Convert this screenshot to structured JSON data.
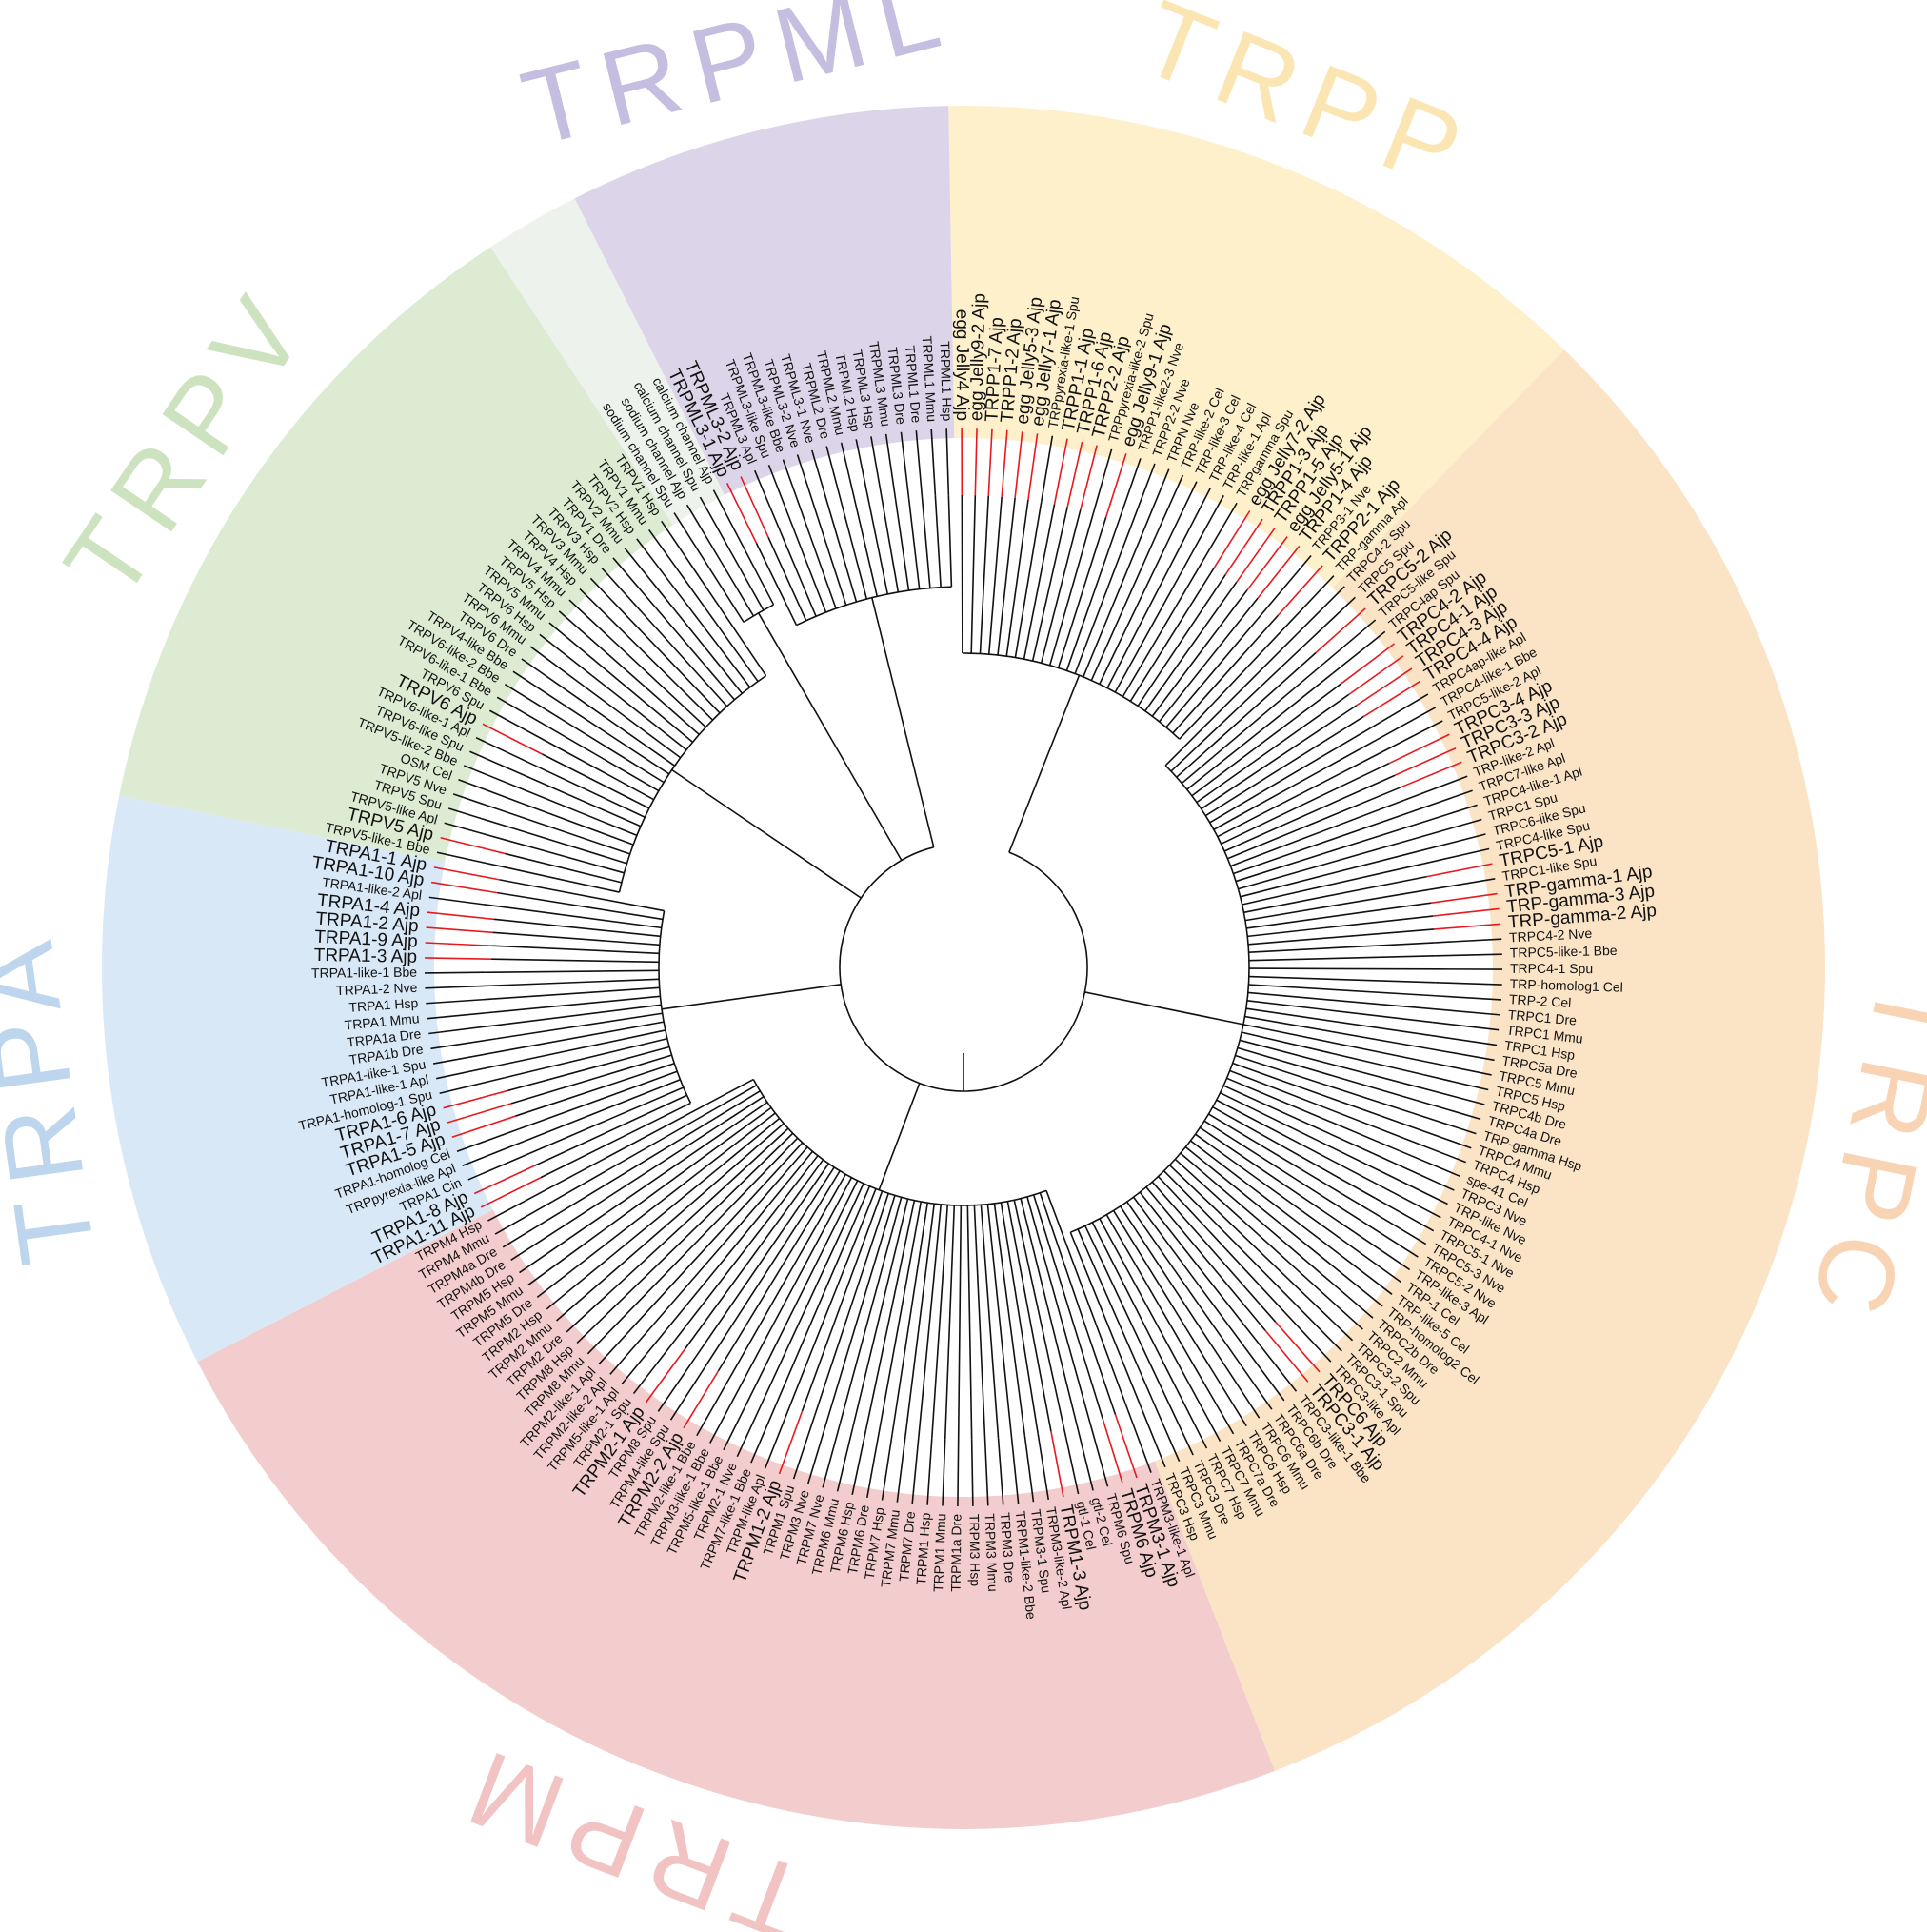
{
  "tree": {
    "highlight_color": "#e8191e",
    "groups": [
      {
        "name": "TRPP",
        "fill": "#fdf0cb",
        "label_color": "#fbe6b3",
        "leaves": [
          {
            "label": "egg Jelly4 Ajp",
            "emphasis": true
          },
          {
            "label": "egg Jelly9-2 Ajp",
            "emphasis": true
          },
          {
            "label": "TRPP1-7 Ajp",
            "emphasis": true
          },
          {
            "label": "TRPP1-2 Ajp",
            "emphasis": true
          },
          {
            "label": "egg Jelly5-3 Ajp",
            "emphasis": true
          },
          {
            "label": "egg Jelly7-1 Ajp",
            "emphasis": true
          },
          {
            "label": "TRPpyrexia-like-1 Spu"
          },
          {
            "label": "TRPP1-1 Ajp",
            "emphasis": true
          },
          {
            "label": "TRPP1-6 Ajp",
            "emphasis": true
          },
          {
            "label": "TRPP2-2 Ajp",
            "emphasis": true
          },
          {
            "label": "TRPpyrexia-like-2 Spu"
          },
          {
            "label": "egg Jelly9-1 Ajp",
            "emphasis": true
          },
          {
            "label": "TRPP1-like2-3 Nve"
          },
          {
            "label": "TRPP2-2 Nve"
          },
          {
            "label": "TRPN Nve"
          },
          {
            "label": "TRP-like-2 Cel"
          },
          {
            "label": "TRP-like-3 Cel"
          },
          {
            "label": "TRP-like-4 Cel"
          },
          {
            "label": "TRP-like-1 Apl"
          },
          {
            "label": "TRPgamma Spu"
          },
          {
            "label": "egg Jelly7-2 Ajp",
            "emphasis": true
          },
          {
            "label": "TRPP1-3 Ajp",
            "emphasis": true
          },
          {
            "label": "TRPP1-5 Ajp",
            "emphasis": true
          },
          {
            "label": "egg Jelly5-1 Ajp",
            "emphasis": true
          },
          {
            "label": "TRPP1-4 Ajp",
            "emphasis": true
          },
          {
            "label": "TRPP3-1 Nve"
          },
          {
            "label": "TRPP2-1 Ajp",
            "emphasis": true
          },
          {
            "label": "TRP-gamma Apl"
          }
        ]
      },
      {
        "name": "TRPC",
        "fill": "#fbe3c6",
        "label_color": "#f8d4b4",
        "leaves": [
          {
            "label": "TRPC4-2 Spu"
          },
          {
            "label": "TRPC5 Spu"
          },
          {
            "label": "TRPC5-2 Ajp",
            "emphasis": true
          },
          {
            "label": "TRPC5-like Spu"
          },
          {
            "label": "TRPC4ap Spu"
          },
          {
            "label": "TRPC4-2 Ajp",
            "emphasis": true
          },
          {
            "label": "TRPC4-1 Ajp",
            "emphasis": true
          },
          {
            "label": "TRPC4-3 Ajp",
            "emphasis": true
          },
          {
            "label": "TRPC4-4 Ajp",
            "emphasis": true
          },
          {
            "label": "TRPC4ap-like Apl"
          },
          {
            "label": "TRPC4-like-1 Bbe"
          },
          {
            "label": "TRPC5-like-2 Apl"
          },
          {
            "label": "TRPC3-4 Ajp",
            "emphasis": true
          },
          {
            "label": "TRPC3-3 Ajp",
            "emphasis": true
          },
          {
            "label": "TRPC3-2 Ajp",
            "emphasis": true
          },
          {
            "label": "TRP-like-2 Apl"
          },
          {
            "label": "TRPC7-like Apl"
          },
          {
            "label": "TRPC4-like-1 Apl"
          },
          {
            "label": "TRPC1 Spu"
          },
          {
            "label": "TRPC6-like Spu"
          },
          {
            "label": "TRPC4-like Spu"
          },
          {
            "label": "TRPC5-1 Ajp",
            "emphasis": true
          },
          {
            "label": "TRPC1-like Spu"
          },
          {
            "label": "TRP-gamma-1 Ajp",
            "emphasis": true
          },
          {
            "label": "TRP-gamma-3 Ajp",
            "emphasis": true
          },
          {
            "label": "TRP-gamma-2 Ajp",
            "emphasis": true
          },
          {
            "label": "TRPC4-2 Nve"
          },
          {
            "label": "TRPC5-like-1 Bbe"
          },
          {
            "label": "TRPC4-1 Spu"
          },
          {
            "label": "TRP-homolog1 Cel"
          },
          {
            "label": "TRP-2 Cel"
          },
          {
            "label": "TRPC1 Dre"
          },
          {
            "label": "TRPC1 Mmu"
          },
          {
            "label": "TRPC1 Hsp"
          },
          {
            "label": "TRPC5a Dre"
          },
          {
            "label": "TRPC5 Mmu"
          },
          {
            "label": "TRPC5 Hsp"
          },
          {
            "label": "TRPC4b Dre"
          },
          {
            "label": "TRPC4a Dre"
          },
          {
            "label": "TRP-gamma Hsp"
          },
          {
            "label": "TRPC4 Mmu"
          },
          {
            "label": "TRPC4 Hsp"
          },
          {
            "label": "spe-41 Cel"
          },
          {
            "label": "TRPC3 Nve"
          },
          {
            "label": "TRP-like Nve"
          },
          {
            "label": "TRPC4-1 Nve"
          },
          {
            "label": "TRPC5-1 Nve"
          },
          {
            "label": "TRPC5-3 Nve"
          },
          {
            "label": "TRPC5-2 Nve"
          },
          {
            "label": "TRP-like-3 Apl"
          },
          {
            "label": "TRP-1 Cel"
          },
          {
            "label": "TRP-like-5 Cel"
          },
          {
            "label": "TRP-homolog2 Cel"
          },
          {
            "label": "TRPC2b Dre"
          },
          {
            "label": "TRPC2 Mmu"
          },
          {
            "label": "TRPC3-2 Spu"
          },
          {
            "label": "TRPC3-1 Spu"
          },
          {
            "label": "TRPC3-like Apl"
          },
          {
            "label": "TRPC6 Ajp",
            "emphasis": true
          },
          {
            "label": "TRPC3-1 Ajp",
            "emphasis": true
          },
          {
            "label": "TRPC3-like-1 Bbe"
          },
          {
            "label": "TRPC6b Dre"
          },
          {
            "label": "TRPC6a Dre"
          },
          {
            "label": "TRPC6 Mmu"
          },
          {
            "label": "TRPC6 Hsp"
          },
          {
            "label": "TRPC7a Dre"
          },
          {
            "label": "TRPC7 Mmu"
          },
          {
            "label": "TRPC7 Hsp"
          },
          {
            "label": "TRPC3 Dre"
          },
          {
            "label": "TRPC3 Mmu"
          },
          {
            "label": "TRPC3 Hsp"
          }
        ]
      },
      {
        "name": "TRPM",
        "fill": "#f3cdcd",
        "label_color": "#f2c3c3",
        "leaves": [
          {
            "label": "TRPM3-like-1 Apl"
          },
          {
            "label": "TRPM3-1 Ajp",
            "emphasis": true
          },
          {
            "label": "TRPM6 Ajp",
            "emphasis": true
          },
          {
            "label": "TRPM6 Spu"
          },
          {
            "label": "gtl-2 Cel"
          },
          {
            "label": "gtl-1 Cel"
          },
          {
            "label": "TRPM1-3 Ajp",
            "emphasis": true
          },
          {
            "label": "TRPM3-like-2 Apl"
          },
          {
            "label": "TRPM3-1 Spu"
          },
          {
            "label": "TRPM1-like-2 Bbe"
          },
          {
            "label": "TRPM3 Dre"
          },
          {
            "label": "TRPM3 Mmu"
          },
          {
            "label": "TRPM3 Hsp"
          },
          {
            "label": "TRPM1a Dre"
          },
          {
            "label": "TRPM1 Mmu"
          },
          {
            "label": "TRPM1 Hsp"
          },
          {
            "label": "TRPM7 Dre"
          },
          {
            "label": "TRPM7 Mmu"
          },
          {
            "label": "TRPM7 Hsp"
          },
          {
            "label": "TRPM6 Dre"
          },
          {
            "label": "TRPM6 Hsp"
          },
          {
            "label": "TRPM6 Mmu"
          },
          {
            "label": "TRPM7 Nve"
          },
          {
            "label": "TRPM3 Nve"
          },
          {
            "label": "TRPM1 Spu"
          },
          {
            "label": "TRPM1-2 Ajp",
            "emphasis": true
          },
          {
            "label": "TRPM-like Apl"
          },
          {
            "label": "TRPM7-like-1 Bbe"
          },
          {
            "label": "TRPM2-1 Nve"
          },
          {
            "label": "TRPM5-like-1 Bbe"
          },
          {
            "label": "TRPM3-like-1 Bbe"
          },
          {
            "label": "TRPM2-like-1 Bbe"
          },
          {
            "label": "TRPM2-2 Ajp",
            "emphasis": true
          },
          {
            "label": "TRPM4-like Spu"
          },
          {
            "label": "TRPM8 Spu"
          },
          {
            "label": "TRPM2-1 Ajp",
            "emphasis": true
          },
          {
            "label": "TRPM2-1 Spu"
          },
          {
            "label": "TRPM5-like-1 Apl"
          },
          {
            "label": "TRPM2-like-2 Apl"
          },
          {
            "label": "TRPM2-like-1 Apl"
          },
          {
            "label": "TRPM8 Mmu"
          },
          {
            "label": "TRPM8 Hsp"
          },
          {
            "label": "TRPM2 Dre"
          },
          {
            "label": "TRPM2 Mmu"
          },
          {
            "label": "TRPM2 Hsp"
          },
          {
            "label": "TRPM5 Dre"
          },
          {
            "label": "TRPM5 Mmu"
          },
          {
            "label": "TRPM5 Hsp"
          },
          {
            "label": "TRPM4b Dre"
          },
          {
            "label": "TRPM4a Dre"
          },
          {
            "label": "TRPM4 Mmu"
          },
          {
            "label": "TRPM4 Hsp"
          }
        ]
      },
      {
        "name": "TRPA",
        "fill": "#d9e8f6",
        "label_color": "#bdd6ee",
        "leaves": [
          {
            "label": "TRPA1-11 Ajp",
            "emphasis": true
          },
          {
            "label": "TRPA1-8 Ajp",
            "emphasis": true
          },
          {
            "label": "TRPA1 Cin"
          },
          {
            "label": "TRPpyrexia-like Apl"
          },
          {
            "label": "TRPA1-homolog Cel"
          },
          {
            "label": "TRPA1-5 Ajp",
            "emphasis": true
          },
          {
            "label": "TRPA1-7 Ajp",
            "emphasis": true
          },
          {
            "label": "TRPA1-6 Ajp",
            "emphasis": true
          },
          {
            "label": "TRPA1-homolog-1 Spu"
          },
          {
            "label": "TRPA1-like-1 Apl"
          },
          {
            "label": "TRPA1-like-1 Spu"
          },
          {
            "label": "TRPA1b Dre"
          },
          {
            "label": "TRPA1a Dre"
          },
          {
            "label": "TRPA1 Mmu"
          },
          {
            "label": "TRPA1 Hsp"
          },
          {
            "label": "TRPA1-2 Nve"
          },
          {
            "label": "TRPA1-like-1 Bbe"
          },
          {
            "label": "TRPA1-3 Ajp",
            "emphasis": true
          },
          {
            "label": "TRPA1-9 Ajp",
            "emphasis": true
          },
          {
            "label": "TRPA1-2 Ajp",
            "emphasis": true
          },
          {
            "label": "TRPA1-4 Ajp",
            "emphasis": true
          },
          {
            "label": "TRPA1-like-2 Apl"
          },
          {
            "label": "TRPA1-10 Ajp",
            "emphasis": true
          },
          {
            "label": "TRPA1-1 Ajp",
            "emphasis": true
          }
        ]
      },
      {
        "name": "TRPV",
        "fill": "#dcebd2",
        "label_color": "#cde3c0",
        "leaves": [
          {
            "label": "TRPV5-like-1 Bbe"
          },
          {
            "label": "TRPV5 Ajp",
            "emphasis": true
          },
          {
            "label": "TRPV5-like Apl"
          },
          {
            "label": "TRPV5 Spu"
          },
          {
            "label": "TRPV5 Nve"
          },
          {
            "label": "OSM Cel"
          },
          {
            "label": "TRPV5-like-2 Bbe"
          },
          {
            "label": "TRPV6-like Spu"
          },
          {
            "label": "TRPV6-like-1 Apl"
          },
          {
            "label": "TRPV6 Ajp",
            "emphasis": true
          },
          {
            "label": "TRPV6 Spu"
          },
          {
            "label": "TRPV6-like-1 Bbe"
          },
          {
            "label": "TRPV6-like-2 Bbe"
          },
          {
            "label": "TRPV4-like Bbe"
          },
          {
            "label": "TRPV6 Dre"
          },
          {
            "label": "TRPV6 Mmu"
          },
          {
            "label": "TRPV6 Hsp"
          },
          {
            "label": "TRPV5 Mmu"
          },
          {
            "label": "TRPV5 Hsp"
          },
          {
            "label": "TRPV4 Mmu"
          },
          {
            "label": "TRPV4 Hsp"
          },
          {
            "label": "TRPV3 Mmu"
          },
          {
            "label": "TRPV3 Hsp"
          },
          {
            "label": "TRPV1 Dre"
          },
          {
            "label": "TRPV2 Mmu"
          },
          {
            "label": "TRPV2 Hsp"
          },
          {
            "label": "TRPV1 Mmu"
          },
          {
            "label": "TRPV1 Hsp"
          }
        ]
      },
      {
        "fill": "#eef2ec",
        "leaves": [
          {
            "label": "sodium channel Spu"
          },
          {
            "label": "sodium channel Ajp"
          },
          {
            "label": "calcium channel Spu"
          },
          {
            "label": "calcium channel Ajp"
          }
        ]
      },
      {
        "name": "TRPML",
        "fill": "#dcd5ea",
        "label_color": "#c5bee0",
        "leaves": [
          {
            "label": "TRPML3-1 Ajp",
            "emphasis": true
          },
          {
            "label": "TRPML3-2 Ajp",
            "emphasis": true
          },
          {
            "label": "TRPML3 Apl"
          },
          {
            "label": "TRPML3-like Spu"
          },
          {
            "label": "TRPML3-like Bbe"
          },
          {
            "label": "TRPML3-2 Nve"
          },
          {
            "label": "TRPML3-1 Nve"
          },
          {
            "label": "TRPML2 Dre"
          },
          {
            "label": "TRPML2 Mmu"
          },
          {
            "label": "TRPML2 Hsp"
          },
          {
            "label": "TRPML3 Hsp"
          },
          {
            "label": "TRPML3 Mmu"
          },
          {
            "label": "TRPML3 Dre"
          },
          {
            "label": "TRPML1 Dre"
          },
          {
            "label": "TRPML1 Mmu"
          },
          {
            "label": "TRPML1 Hsp"
          }
        ]
      }
    ]
  }
}
